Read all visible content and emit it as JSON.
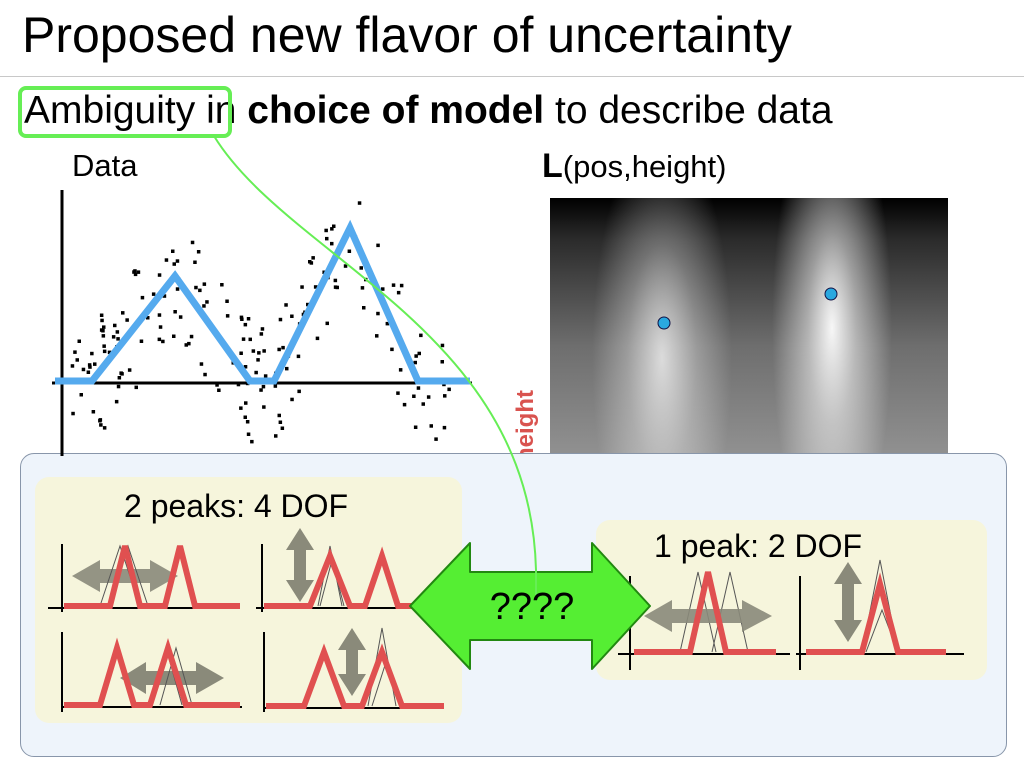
{
  "slide": {
    "title": "Proposed new flavor of uncertainty",
    "subtitle": {
      "part1": "Ambiguity",
      "part2": " in ",
      "part3": "choice of model",
      "part4": " to describe data"
    },
    "data_label": "Data",
    "likelihood_label": {
      "big": "L",
      "rest": "(pos,height)"
    },
    "height_axis_label": "height",
    "two_peaks_label": "2 peaks: 4 DOF",
    "one_peak_label": "1 peak: 2 DOF",
    "arrow_label": "????"
  },
  "colors": {
    "accent_green": "#66ee55",
    "arrow_green": "#55ee33",
    "model_blue": "#55aaee",
    "peak_red": "#e05050",
    "height_label_red": "#d9534f",
    "panel_bg": "#eef4fb",
    "inner_box_bg": "#f6f5dc"
  }
}
